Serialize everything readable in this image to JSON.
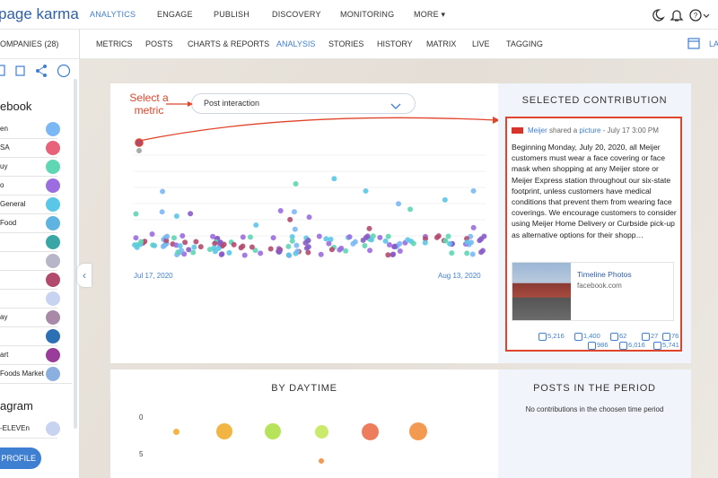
{
  "header": {
    "logo": "page karma",
    "nav": [
      "ANALYTICS",
      "ENGAGE",
      "PUBLISH",
      "DISCOVERY",
      "MONITORING",
      "MORE ▾"
    ],
    "subnav_left": "OMPANIES (28)",
    "subnav": [
      "METRICS",
      "POSTS",
      "CHARTS & REPORTS",
      "ANALYSIS",
      "STORIES",
      "HISTORY",
      "MATRIX",
      "LIVE",
      "TAGGING"
    ],
    "subnav_right": "LA"
  },
  "sidebar": {
    "facebook_heading": "ebook",
    "pages": [
      "en",
      "SA",
      "uy",
      "o",
      "General",
      "Food",
      "",
      "",
      "",
      "",
      "ay",
      "",
      "art",
      "Foods Market"
    ],
    "instagram_heading": "agram",
    "instagram_pages": [
      "-ELEVEn"
    ],
    "button": "PROFILE"
  },
  "analysis": {
    "annotation": "Select a metric",
    "metric": "Post interaction",
    "start_date": "Jul 17, 2020",
    "end_date": "Aug 13, 2020"
  },
  "contribution": {
    "title": "SELECTED CONTRIBUTION",
    "page": "Meijer",
    "shared": "shared a",
    "link": "picture",
    "date": "- July 17 3:00 PM",
    "text": "Beginning Monday, July 20, 2020, all Meijer customers must wear a face covering or face mask when shopping at any Meijer store or Meijer Express station throughout our six-state footprint, unless customers have medical conditions that prevent them from wearing face coverings. We encourage customers to consider using Meijer Home Delivery or Curbside pick-up as alternative options for their shopp…",
    "attachment_title": "Timeline Photos",
    "attachment_domain": "facebook.com",
    "stats_row1": [
      "5,216",
      "1,400",
      "62",
      "27",
      "76"
    ],
    "stats_row2": [
      "986",
      "6,016",
      "5,741"
    ]
  },
  "daytime": {
    "title": "BY DAYTIME",
    "ticks": [
      "0",
      "5"
    ]
  },
  "period": {
    "title": "POSTS IN THE PERIOD",
    "empty": "No contributions in the choosen time period"
  }
}
